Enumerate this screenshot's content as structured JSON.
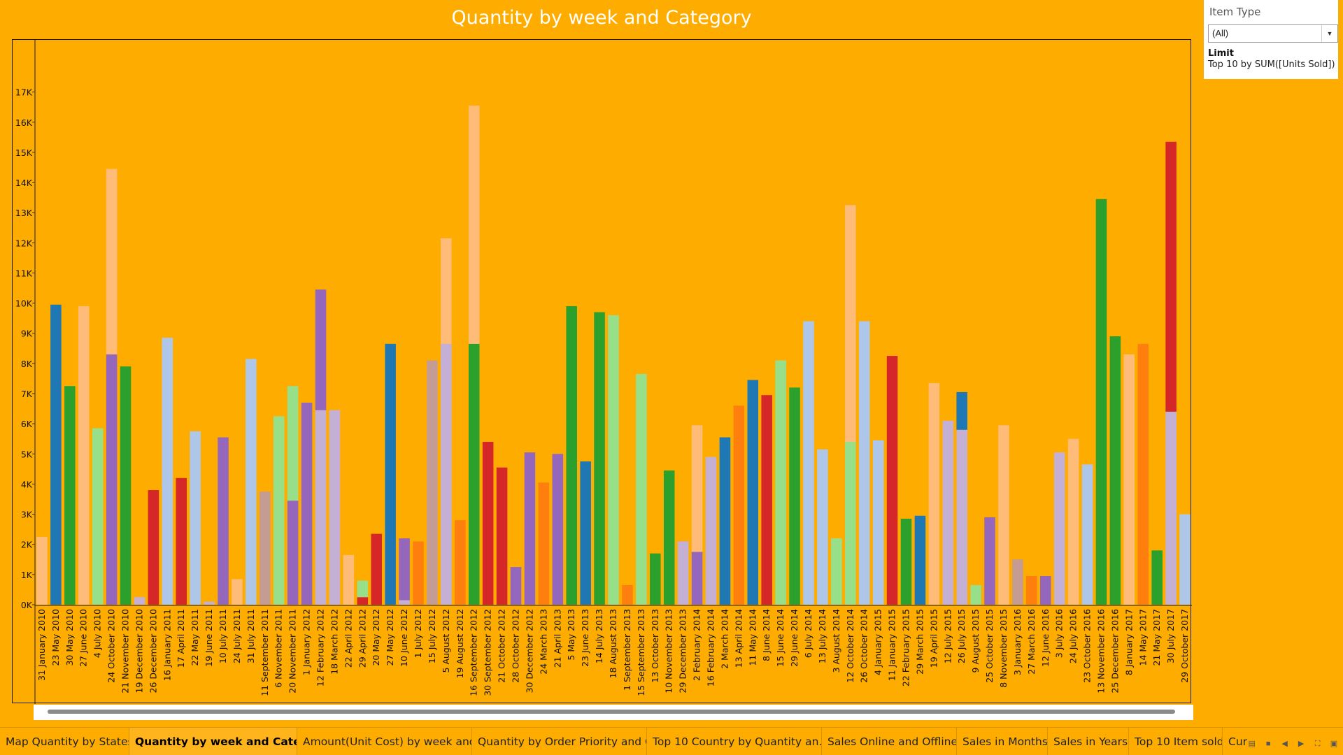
{
  "dashboard": {
    "title": "Quantity by week and Category"
  },
  "filter": {
    "title": "Item Type",
    "selected": "(All)",
    "limit_label": "Limit",
    "limit_value": "Top 10 by SUM([Units Sold])"
  },
  "tabs": [
    {
      "label": "Map Quantity by States",
      "active": false
    },
    {
      "label": "Quantity by week and Category",
      "active": true
    },
    {
      "label": "Amount(Unit Cost) by week and ...",
      "active": false
    },
    {
      "label": "Quantity by Order Priority and C...",
      "active": false
    },
    {
      "label": "Top 10 Country by Quantity  an...",
      "active": false
    },
    {
      "label": "Sales Online and Offline",
      "active": false
    },
    {
      "label": "Sales in Months",
      "active": false
    },
    {
      "label": "Sales in Years",
      "active": false
    },
    {
      "label": "Top 10 Item sold",
      "active": false
    },
    {
      "label": "Cur",
      "active": false
    }
  ],
  "colors": {
    "background": "#FEAD00",
    "blue": "#1F77B4",
    "light_blue": "#AEC7E8",
    "orange": "#FF7F0E",
    "light_orange": "#FFBB78",
    "green": "#2CA02C",
    "light_green": "#98DF8A",
    "red": "#D62728",
    "purple": "#9467BD",
    "lavender": "#C5B0D5",
    "brown": "#C49C94"
  },
  "chart_data": {
    "type": "bar",
    "stacked": true,
    "title": "Quantity by week and Category",
    "ylim": [
      0,
      17200
    ],
    "y_ticks": [
      "0K",
      "1K",
      "2K",
      "3K",
      "4K",
      "5K",
      "6K",
      "7K",
      "8K",
      "9K",
      "10K",
      "11K",
      "12K",
      "13K",
      "14K",
      "15K",
      "16K",
      "17K"
    ],
    "grid": false,
    "categories": [
      {
        "label": "31 January 2010",
        "segments": [
          {
            "value": 2250,
            "color": "#FFBB78"
          }
        ]
      },
      {
        "label": "23 May 2010",
        "segments": [
          {
            "value": 9950,
            "color": "#1F77B4"
          }
        ]
      },
      {
        "label": "30 May 2010",
        "segments": [
          {
            "value": 7250,
            "color": "#2CA02C"
          }
        ]
      },
      {
        "label": "27 June 2010",
        "segments": [
          {
            "value": 9900,
            "color": "#FFBB78"
          }
        ]
      },
      {
        "label": "4 July 2010",
        "segments": [
          {
            "value": 5850,
            "color": "#98DF8A"
          }
        ]
      },
      {
        "label": "24 October 2010",
        "segments": [
          {
            "value": 8300,
            "color": "#9467BD"
          },
          {
            "value": 6150,
            "color": "#FFBB78"
          }
        ]
      },
      {
        "label": "21 November 2010",
        "segments": [
          {
            "value": 7900,
            "color": "#2CA02C"
          }
        ]
      },
      {
        "label": "19 December 2010",
        "segments": [
          {
            "value": 250,
            "color": "#C5B0D5"
          }
        ]
      },
      {
        "label": "26 December 2010",
        "segments": [
          {
            "value": 3800,
            "color": "#D62728"
          }
        ]
      },
      {
        "label": "16 January 2011",
        "segments": [
          {
            "value": 8850,
            "color": "#AEC7E8"
          }
        ]
      },
      {
        "label": "17 April 2011",
        "segments": [
          {
            "value": 4200,
            "color": "#D62728"
          }
        ]
      },
      {
        "label": "22 May 2011",
        "segments": [
          {
            "value": 5750,
            "color": "#AEC7E8"
          }
        ]
      },
      {
        "label": "19 June 2011",
        "segments": [
          {
            "value": 100,
            "color": "#C5B0D5"
          }
        ]
      },
      {
        "label": "10 July 2011",
        "segments": [
          {
            "value": 5550,
            "color": "#9467BD"
          }
        ]
      },
      {
        "label": "24 July 2011",
        "segments": [
          {
            "value": 850,
            "color": "#FFBB78"
          }
        ]
      },
      {
        "label": "31 July 2011",
        "segments": [
          {
            "value": 8150,
            "color": "#AEC7E8"
          }
        ]
      },
      {
        "label": "11 September 2011",
        "segments": [
          {
            "value": 3750,
            "color": "#C49C94"
          }
        ]
      },
      {
        "label": "6 November 2011",
        "segments": [
          {
            "value": 6250,
            "color": "#98DF8A"
          }
        ]
      },
      {
        "label": "20 November 2011",
        "segments": [
          {
            "value": 3450,
            "color": "#9467BD"
          },
          {
            "value": 3800,
            "color": "#98DF8A"
          }
        ]
      },
      {
        "label": "1 January 2012",
        "segments": [
          {
            "value": 6700,
            "color": "#9467BD"
          }
        ]
      },
      {
        "label": "12 February 2012",
        "segments": [
          {
            "value": 6450,
            "color": "#C5B0D5"
          },
          {
            "value": 4000,
            "color": "#9467BD"
          }
        ]
      },
      {
        "label": "18 March 2012",
        "segments": [
          {
            "value": 6450,
            "color": "#C5B0D5"
          }
        ]
      },
      {
        "label": "22 April 2012",
        "segments": [
          {
            "value": 1650,
            "color": "#FFBB78"
          }
        ]
      },
      {
        "label": "29 April 2012",
        "segments": [
          {
            "value": 250,
            "color": "#D62728"
          },
          {
            "value": 550,
            "color": "#98DF8A"
          }
        ]
      },
      {
        "label": "20 May 2012",
        "segments": [
          {
            "value": 2350,
            "color": "#D62728"
          }
        ]
      },
      {
        "label": "27 May 2012",
        "segments": [
          {
            "value": 8650,
            "color": "#1F77B4"
          }
        ]
      },
      {
        "label": "10 June 2012",
        "segments": [
          {
            "value": 150,
            "color": "#C5B0D5"
          },
          {
            "value": 2050,
            "color": "#9467BD"
          }
        ]
      },
      {
        "label": "1 July 2012",
        "segments": [
          {
            "value": 2100,
            "color": "#FF7F0E"
          }
        ]
      },
      {
        "label": "15 July 2012",
        "segments": [
          {
            "value": 8100,
            "color": "#C49C94"
          }
        ]
      },
      {
        "label": "5 August 2012",
        "segments": [
          {
            "value": 8650,
            "color": "#C5B0D5"
          },
          {
            "value": 3500,
            "color": "#FFBB78"
          }
        ]
      },
      {
        "label": "19 August 2012",
        "segments": [
          {
            "value": 2800,
            "color": "#FF7F0E"
          }
        ]
      },
      {
        "label": "16 September 2012",
        "segments": [
          {
            "value": 8650,
            "color": "#2CA02C"
          },
          {
            "value": 7900,
            "color": "#FFBB78"
          }
        ]
      },
      {
        "label": "30 September 2012",
        "segments": [
          {
            "value": 5400,
            "color": "#D62728"
          }
        ]
      },
      {
        "label": "21 October 2012",
        "segments": [
          {
            "value": 4550,
            "color": "#D62728"
          }
        ]
      },
      {
        "label": "28 October 2012",
        "segments": [
          {
            "value": 1250,
            "color": "#9467BD"
          }
        ]
      },
      {
        "label": "30 December 2012",
        "segments": [
          {
            "value": 5050,
            "color": "#9467BD"
          }
        ]
      },
      {
        "label": "24 March 2013",
        "segments": [
          {
            "value": 4050,
            "color": "#FF7F0E"
          }
        ]
      },
      {
        "label": "21 April 2013",
        "segments": [
          {
            "value": 5000,
            "color": "#9467BD"
          }
        ]
      },
      {
        "label": "5 May 2013",
        "segments": [
          {
            "value": 9900,
            "color": "#2CA02C"
          }
        ]
      },
      {
        "label": "23 June 2013",
        "segments": [
          {
            "value": 4750,
            "color": "#1F77B4"
          }
        ]
      },
      {
        "label": "14 July 2013",
        "segments": [
          {
            "value": 9700,
            "color": "#2CA02C"
          }
        ]
      },
      {
        "label": "18 August 2013",
        "segments": [
          {
            "value": 9600,
            "color": "#98DF8A"
          }
        ]
      },
      {
        "label": "1 September 2013",
        "segments": [
          {
            "value": 650,
            "color": "#FF7F0E"
          }
        ]
      },
      {
        "label": "15 September 2013",
        "segments": [
          {
            "value": 7650,
            "color": "#98DF8A"
          }
        ]
      },
      {
        "label": "13 October 2013",
        "segments": [
          {
            "value": 1700,
            "color": "#2CA02C"
          }
        ]
      },
      {
        "label": "10 November 2013",
        "segments": [
          {
            "value": 4450,
            "color": "#2CA02C"
          }
        ]
      },
      {
        "label": "29 December 2013",
        "segments": [
          {
            "value": 2100,
            "color": "#C5B0D5"
          }
        ]
      },
      {
        "label": "2 February 2014",
        "segments": [
          {
            "value": 1750,
            "color": "#9467BD"
          },
          {
            "value": 4200,
            "color": "#FFBB78"
          }
        ]
      },
      {
        "label": "16 February 2014",
        "segments": [
          {
            "value": 4900,
            "color": "#C5B0D5"
          }
        ]
      },
      {
        "label": "2 March 2014",
        "segments": [
          {
            "value": 5550,
            "color": "#1F77B4"
          }
        ]
      },
      {
        "label": "13 April 2014",
        "segments": [
          {
            "value": 6600,
            "color": "#FF7F0E"
          }
        ]
      },
      {
        "label": "11 May 2014",
        "segments": [
          {
            "value": 7450,
            "color": "#1F77B4"
          }
        ]
      },
      {
        "label": "8 June 2014",
        "segments": [
          {
            "value": 6950,
            "color": "#D62728"
          }
        ]
      },
      {
        "label": "15 June 2014",
        "segments": [
          {
            "value": 8100,
            "color": "#98DF8A"
          }
        ]
      },
      {
        "label": "29 June 2014",
        "segments": [
          {
            "value": 7200,
            "color": "#2CA02C"
          }
        ]
      },
      {
        "label": "6 July 2014",
        "segments": [
          {
            "value": 9400,
            "color": "#AEC7E8"
          }
        ]
      },
      {
        "label": "13 July 2014",
        "segments": [
          {
            "value": 5150,
            "color": "#AEC7E8"
          }
        ]
      },
      {
        "label": "3 August 2014",
        "segments": [
          {
            "value": 2200,
            "color": "#98DF8A"
          }
        ]
      },
      {
        "label": "12 October 2014",
        "segments": [
          {
            "value": 5400,
            "color": "#98DF8A"
          },
          {
            "value": 7850,
            "color": "#FFBB78"
          }
        ]
      },
      {
        "label": "26 October 2014",
        "segments": [
          {
            "value": 9400,
            "color": "#AEC7E8"
          }
        ]
      },
      {
        "label": "4 January 2015",
        "segments": [
          {
            "value": 5450,
            "color": "#AEC7E8"
          }
        ]
      },
      {
        "label": "11 January 2015",
        "segments": [
          {
            "value": 8250,
            "color": "#D62728"
          }
        ]
      },
      {
        "label": "22 February 2015",
        "segments": [
          {
            "value": 2850,
            "color": "#2CA02C"
          }
        ]
      },
      {
        "label": "29 March 2015",
        "segments": [
          {
            "value": 2950,
            "color": "#1F77B4"
          }
        ]
      },
      {
        "label": "19 April 2015",
        "segments": [
          {
            "value": 7350,
            "color": "#FFBB78"
          }
        ]
      },
      {
        "label": "12 July 2015",
        "segments": [
          {
            "value": 6100,
            "color": "#C5B0D5"
          }
        ]
      },
      {
        "label": "26 July 2015",
        "segments": [
          {
            "value": 5800,
            "color": "#C5B0D5"
          },
          {
            "value": 1250,
            "color": "#1F77B4"
          }
        ]
      },
      {
        "label": "9 August 2015",
        "segments": [
          {
            "value": 650,
            "color": "#98DF8A"
          }
        ]
      },
      {
        "label": "25 October 2015",
        "segments": [
          {
            "value": 2900,
            "color": "#9467BD"
          }
        ]
      },
      {
        "label": "8 November 2015",
        "segments": [
          {
            "value": 5950,
            "color": "#FFBB78"
          }
        ]
      },
      {
        "label": "3 January 2016",
        "segments": [
          {
            "value": 1500,
            "color": "#C49C94"
          }
        ]
      },
      {
        "label": "27 March 2016",
        "segments": [
          {
            "value": 950,
            "color": "#FF7F0E"
          }
        ]
      },
      {
        "label": "12 June 2016",
        "segments": [
          {
            "value": 950,
            "color": "#9467BD"
          }
        ]
      },
      {
        "label": "3 July 2016",
        "segments": [
          {
            "value": 5050,
            "color": "#C5B0D5"
          }
        ]
      },
      {
        "label": "24 July 2016",
        "segments": [
          {
            "value": 5500,
            "color": "#FFBB78"
          }
        ]
      },
      {
        "label": "23 October 2016",
        "segments": [
          {
            "value": 4650,
            "color": "#AEC7E8"
          }
        ]
      },
      {
        "label": "13 November 2016",
        "segments": [
          {
            "value": 13450,
            "color": "#2CA02C"
          }
        ]
      },
      {
        "label": "25 December 2016",
        "segments": [
          {
            "value": 8900,
            "color": "#2CA02C"
          }
        ]
      },
      {
        "label": "8 January 2017",
        "segments": [
          {
            "value": 8300,
            "color": "#FFBB78"
          }
        ]
      },
      {
        "label": "14 May 2017",
        "segments": [
          {
            "value": 8650,
            "color": "#FF7F0E"
          }
        ]
      },
      {
        "label": "21 May 2017",
        "segments": [
          {
            "value": 1800,
            "color": "#2CA02C"
          }
        ]
      },
      {
        "label": "30 July 2017",
        "segments": [
          {
            "value": 6400,
            "color": "#C5B0D5"
          },
          {
            "value": 8950,
            "color": "#D62728"
          }
        ]
      },
      {
        "label": "29 October 2017",
        "segments": [
          {
            "value": 3000,
            "color": "#AEC7E8"
          }
        ]
      }
    ]
  }
}
